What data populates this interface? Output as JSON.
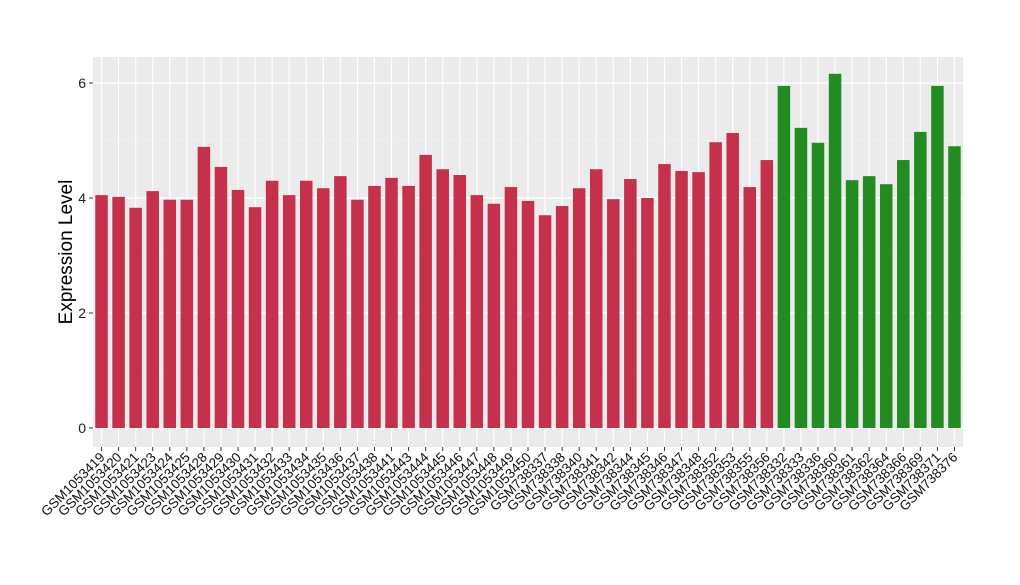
{
  "chart_data": {
    "type": "bar",
    "title": "",
    "xlabel": "",
    "ylabel": "Expression Level",
    "ylim": [
      0,
      6.5
    ],
    "yticks": [
      0,
      2,
      4,
      6
    ],
    "grid": true,
    "colors": {
      "group1": "#C5314A",
      "group2": "#228B22",
      "panel": "#EBEBEB",
      "grid": "#FFFFFF"
    },
    "categories": [
      "GSM1053419",
      "GSM1053420",
      "GSM1053421",
      "GSM1053423",
      "GSM1053424",
      "GSM1053425",
      "GSM1053428",
      "GSM1053429",
      "GSM1053430",
      "GSM1053431",
      "GSM1053432",
      "GSM1053433",
      "GSM1053434",
      "GSM1053435",
      "GSM1053436",
      "GSM1053437",
      "GSM1053438",
      "GSM1053441",
      "GSM1053443",
      "GSM1053444",
      "GSM1053445",
      "GSM1053446",
      "GSM1053447",
      "GSM1053448",
      "GSM1053449",
      "GSM1053450",
      "GSM738337",
      "GSM738338",
      "GSM738340",
      "GSM738341",
      "GSM738342",
      "GSM738344",
      "GSM738345",
      "GSM738346",
      "GSM738347",
      "GSM738348",
      "GSM738352",
      "GSM738353",
      "GSM738355",
      "GSM738356",
      "GSM738332",
      "GSM738333",
      "GSM738336",
      "GSM738360",
      "GSM738361",
      "GSM738362",
      "GSM738364",
      "GSM738366",
      "GSM738369",
      "GSM738371",
      "GSM738376"
    ],
    "values": [
      4.05,
      4.02,
      3.83,
      4.12,
      3.97,
      3.97,
      4.89,
      4.54,
      4.14,
      3.84,
      4.3,
      4.05,
      4.3,
      4.17,
      4.38,
      3.97,
      4.21,
      4.35,
      4.21,
      4.75,
      4.5,
      4.4,
      4.05,
      3.9,
      4.19,
      3.95,
      3.7,
      3.86,
      4.17,
      4.5,
      3.98,
      4.33,
      4.0,
      4.59,
      4.47,
      4.45,
      4.97,
      5.13,
      4.19,
      4.66,
      5.95,
      5.22,
      4.96,
      6.16,
      4.31,
      4.38,
      4.24,
      4.66,
      5.15,
      5.95,
      4.9
    ],
    "groups": [
      "group1",
      "group1",
      "group1",
      "group1",
      "group1",
      "group1",
      "group1",
      "group1",
      "group1",
      "group1",
      "group1",
      "group1",
      "group1",
      "group1",
      "group1",
      "group1",
      "group1",
      "group1",
      "group1",
      "group1",
      "group1",
      "group1",
      "group1",
      "group1",
      "group1",
      "group1",
      "group1",
      "group1",
      "group1",
      "group1",
      "group1",
      "group1",
      "group1",
      "group1",
      "group1",
      "group1",
      "group1",
      "group1",
      "group1",
      "group1",
      "group2",
      "group2",
      "group2",
      "group2",
      "group2",
      "group2",
      "group2",
      "group2",
      "group2",
      "group2",
      "group2"
    ]
  }
}
